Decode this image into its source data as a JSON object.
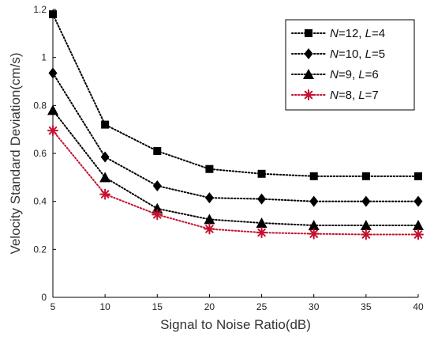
{
  "chart_data": {
    "type": "line",
    "xlabel": "Signal to Noise Ratio(dB)",
    "ylabel": "Velocity Standard Deviation(cm/s)",
    "xlim": [
      5,
      40
    ],
    "ylim": [
      0,
      1.2
    ],
    "xticks": [
      5,
      10,
      15,
      20,
      25,
      30,
      35,
      40
    ],
    "yticks": [
      0,
      0.2,
      0.4,
      0.6,
      0.8,
      1,
      1.2
    ],
    "xtick_labels": [
      "5",
      "10",
      "15",
      "20",
      "25",
      "30",
      "35",
      "40"
    ],
    "ytick_labels": [
      "0",
      "0.2",
      "0.4",
      "0.6",
      "0.8",
      "1",
      "1.2"
    ],
    "grid": false,
    "legend_position": "top-right",
    "x": [
      5,
      10,
      15,
      20,
      25,
      30,
      35,
      40
    ],
    "series": [
      {
        "legend": [
          {
            "text": "N",
            "italic": true
          },
          {
            "text": "=12, ",
            "italic": false
          },
          {
            "text": "L",
            "italic": true
          },
          {
            "text": "=4",
            "italic": false
          }
        ],
        "marker": "square",
        "color": "#000000",
        "values": [
          1.18,
          0.72,
          0.61,
          0.535,
          0.515,
          0.505,
          0.505,
          0.505
        ]
      },
      {
        "legend": [
          {
            "text": "N",
            "italic": true
          },
          {
            "text": "=10, ",
            "italic": false
          },
          {
            "text": "L",
            "italic": true
          },
          {
            "text": "=5",
            "italic": false
          }
        ],
        "marker": "diamond",
        "color": "#000000",
        "values": [
          0.935,
          0.585,
          0.465,
          0.415,
          0.41,
          0.4,
          0.4,
          0.4
        ]
      },
      {
        "legend": [
          {
            "text": "N",
            "italic": true
          },
          {
            "text": "=9, ",
            "italic": false
          },
          {
            "text": "L",
            "italic": true
          },
          {
            "text": "=6",
            "italic": false
          }
        ],
        "marker": "triangle",
        "color": "#000000",
        "values": [
          0.78,
          0.5,
          0.37,
          0.325,
          0.31,
          0.3,
          0.3,
          0.3
        ]
      },
      {
        "legend": [
          {
            "text": "N",
            "italic": true
          },
          {
            "text": "=8, ",
            "italic": false
          },
          {
            "text": "L",
            "italic": true
          },
          {
            "text": "=7",
            "italic": false
          }
        ],
        "marker": "asterisk",
        "color": "#c4122f",
        "values": [
          0.695,
          0.43,
          0.345,
          0.285,
          0.27,
          0.265,
          0.262,
          0.262
        ]
      }
    ]
  }
}
